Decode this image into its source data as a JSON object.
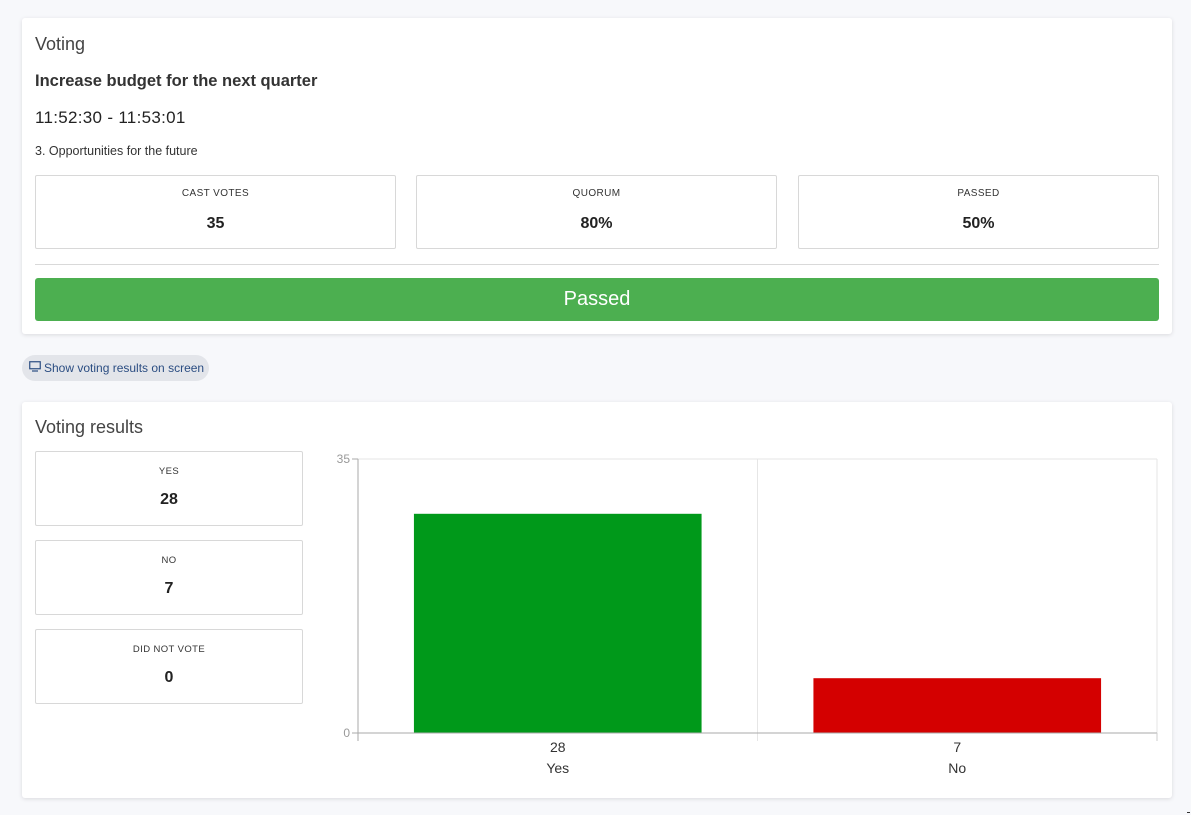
{
  "voting": {
    "title": "Voting",
    "proposal": "Increase budget for the next quarter",
    "time_range": "11:52:30 - 11:53:01",
    "agenda_item": "3. Opportunities for the future",
    "stats": [
      {
        "label": "CAST VOTES",
        "value": "35"
      },
      {
        "label": "QUORUM",
        "value": "80%"
      },
      {
        "label": "PASSED",
        "value": "50%"
      }
    ],
    "result_label": "Passed",
    "result_color": "#4caf50"
  },
  "show_results_button": {
    "label": "Show voting results on screen",
    "icon": "monitor-icon"
  },
  "results": {
    "title": "Voting results",
    "stats": [
      {
        "label": "YES",
        "value": "28"
      },
      {
        "label": "NO",
        "value": "7"
      },
      {
        "label": "DID NOT VOTE",
        "value": "0"
      }
    ]
  },
  "chart_data": {
    "type": "bar",
    "categories": [
      "Yes",
      "No"
    ],
    "values": [
      28,
      7
    ],
    "data_labels": [
      "28",
      "7"
    ],
    "colors": [
      "#00991a",
      "#d40000"
    ],
    "ylim": [
      0,
      35
    ],
    "yticks": [
      0,
      35
    ],
    "grid": true,
    "title": "",
    "xlabel": "",
    "ylabel": ""
  }
}
